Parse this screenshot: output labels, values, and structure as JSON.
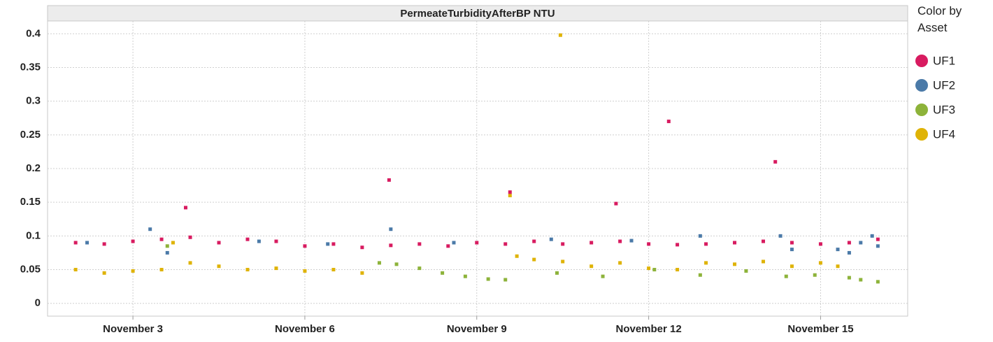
{
  "chart_data": {
    "type": "scatter",
    "title": "PermeateTurbidityAfterBP  NTU",
    "legend_title": "Color by Asset",
    "xlim": [
      1.51,
      16.52
    ],
    "xticks": [
      {
        "value": 3,
        "label": "November 3"
      },
      {
        "value": 6,
        "label": "November 6"
      },
      {
        "value": 9,
        "label": "November 9"
      },
      {
        "value": 12,
        "label": "November 12"
      },
      {
        "value": 15,
        "label": "November 15"
      }
    ],
    "ylim": [
      -0.019,
      0.419
    ],
    "yticks": [
      0,
      0.05,
      0.1,
      0.15,
      0.2,
      0.25,
      0.3,
      0.35,
      0.4
    ],
    "grid": true,
    "legend": "right",
    "series": [
      {
        "name": "UF1",
        "color": "#d81b60",
        "x": [
          2.0,
          2.5,
          3.0,
          3.5,
          3.92,
          4.0,
          4.5,
          5.0,
          5.5,
          6.0,
          6.5,
          7.0,
          7.47,
          7.5,
          8.0,
          8.5,
          9.0,
          9.5,
          9.58,
          10.0,
          10.5,
          11.0,
          11.43,
          11.5,
          12.0,
          12.35,
          12.5,
          13.0,
          13.5,
          14.0,
          14.21,
          14.5,
          15.0,
          15.5,
          16.0
        ],
        "values": [
          0.09,
          0.088,
          0.092,
          0.095,
          0.142,
          0.098,
          0.09,
          0.095,
          0.092,
          0.085,
          0.088,
          0.083,
          0.183,
          0.086,
          0.088,
          0.085,
          0.09,
          0.088,
          0.165,
          0.092,
          0.088,
          0.09,
          0.148,
          0.092,
          0.088,
          0.27,
          0.087,
          0.088,
          0.09,
          0.092,
          0.21,
          0.09,
          0.088,
          0.09,
          0.095
        ]
      },
      {
        "name": "UF2",
        "color": "#4b7aa8",
        "x": [
          2.2,
          3.3,
          3.6,
          5.2,
          6.4,
          7.5,
          8.6,
          10.3,
          11.7,
          12.9,
          14.3,
          14.5,
          15.3,
          15.5,
          15.7,
          15.9,
          16.0
        ],
        "values": [
          0.09,
          0.11,
          0.075,
          0.092,
          0.088,
          0.11,
          0.09,
          0.095,
          0.093,
          0.1,
          0.1,
          0.08,
          0.08,
          0.075,
          0.09,
          0.1,
          0.085
        ]
      },
      {
        "name": "UF3",
        "color": "#8db33a",
        "x": [
          3.6,
          7.3,
          7.6,
          8.0,
          8.4,
          8.8,
          9.2,
          9.5,
          10.4,
          11.2,
          12.1,
          12.9,
          13.7,
          14.4,
          14.9,
          15.5,
          15.7,
          16.0
        ],
        "values": [
          0.085,
          0.06,
          0.058,
          0.052,
          0.045,
          0.04,
          0.036,
          0.035,
          0.045,
          0.04,
          0.05,
          0.042,
          0.048,
          0.04,
          0.042,
          0.038,
          0.035,
          0.032
        ]
      },
      {
        "name": "UF4",
        "color": "#dfb306",
        "x": [
          2.0,
          2.5,
          3.0,
          3.5,
          3.7,
          4.0,
          4.5,
          5.0,
          5.5,
          6.0,
          6.5,
          7.0,
          9.58,
          9.7,
          10.0,
          10.46,
          10.5,
          11.0,
          11.5,
          12.0,
          12.5,
          13.0,
          13.5,
          14.0,
          14.5,
          15.0,
          15.3
        ],
        "values": [
          0.05,
          0.045,
          0.048,
          0.05,
          0.09,
          0.06,
          0.055,
          0.05,
          0.052,
          0.048,
          0.05,
          0.045,
          0.16,
          0.07,
          0.065,
          0.398,
          0.062,
          0.055,
          0.06,
          0.052,
          0.05,
          0.06,
          0.058,
          0.062,
          0.055,
          0.06,
          0.055
        ]
      }
    ]
  }
}
